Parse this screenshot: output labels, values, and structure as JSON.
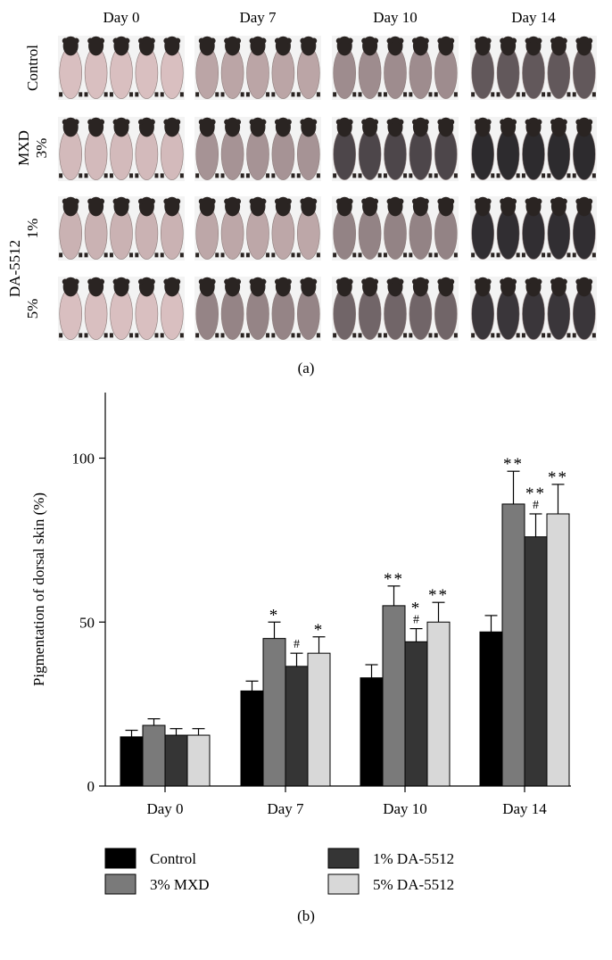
{
  "panel_a": {
    "label": "(a)",
    "columns": [
      "Day 0",
      "Day 7",
      "Day 10",
      "Day 14"
    ],
    "rows": [
      {
        "lines": [
          "Control"
        ],
        "darkness": [
          0.0,
          0.12,
          0.35,
          0.55
        ]
      },
      {
        "lines": [
          "MXD",
          "3%"
        ],
        "darkness": [
          0.03,
          0.35,
          0.7,
          0.95
        ]
      },
      {
        "lines": [
          "1%"
        ],
        "darkness": [
          0.0,
          0.15,
          0.45,
          0.85
        ]
      },
      {
        "lines": [
          "5%"
        ],
        "darkness": [
          0.0,
          0.28,
          0.55,
          0.92
        ]
      }
    ],
    "group_label": "DA-5512",
    "colors": {
      "pink_skin": "#d9bfc0",
      "dark_skin": "#1c1c20",
      "head": "#2a2422"
    }
  },
  "panel_b": {
    "label": "(b)"
  },
  "chart_data": {
    "type": "bar",
    "ylabel": "Pigmentation of dorsal skin (%)",
    "xlabel": "",
    "ylim": [
      0,
      120
    ],
    "yticks": [
      0,
      50,
      100
    ],
    "categories": [
      "Day 0",
      "Day 7",
      "Day 10",
      "Day 14"
    ],
    "series": [
      {
        "name": "Control",
        "color": "#000000",
        "values": [
          15,
          29,
          33,
          47
        ],
        "errors": [
          2,
          3,
          4,
          5
        ],
        "annotations": [
          "",
          "",
          "",
          ""
        ]
      },
      {
        "name": "3% MXD",
        "color": "#7a7a7a",
        "values": [
          18.5,
          45,
          55,
          86
        ],
        "errors": [
          2,
          5,
          6,
          10
        ],
        "annotations": [
          "",
          "*",
          "**",
          "**"
        ]
      },
      {
        "name": "1% DA-5512",
        "color": "#353535",
        "values": [
          15.5,
          36.5,
          44,
          76
        ],
        "errors": [
          2,
          4,
          4,
          7
        ],
        "annotations": [
          "",
          "#",
          "*\n#",
          "**\n#"
        ]
      },
      {
        "name": "5% DA-5512",
        "color": "#d8d8d8",
        "values": [
          15.5,
          40.5,
          50,
          83
        ],
        "errors": [
          2,
          5,
          6,
          9
        ],
        "annotations": [
          "",
          "*",
          "**",
          "**"
        ]
      }
    ],
    "legend_position": "bottom"
  }
}
